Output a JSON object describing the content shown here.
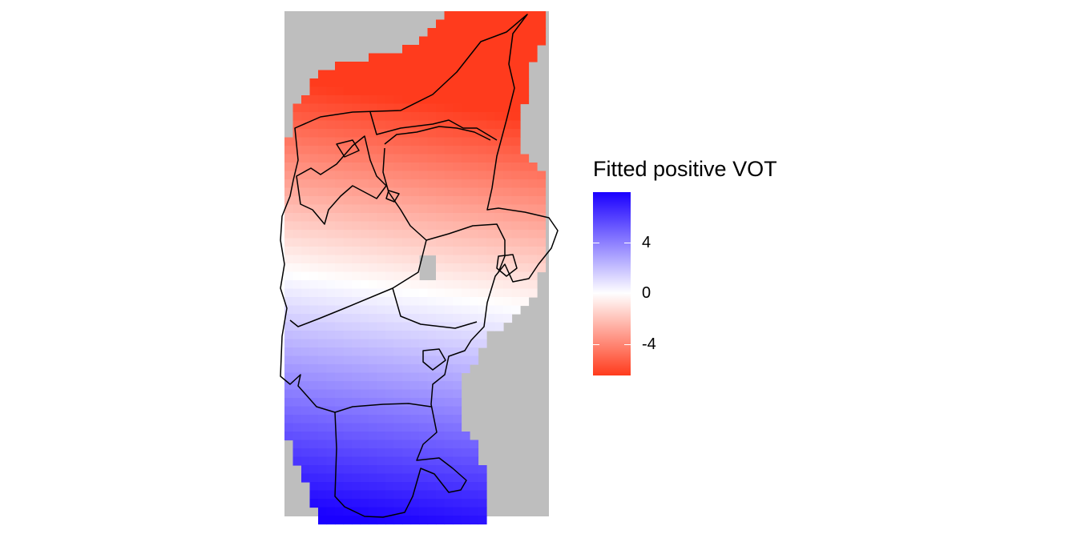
{
  "legend": {
    "title": "Fitted positive VOT",
    "range": [
      -6.5,
      8
    ],
    "ticks": [
      {
        "value": 4,
        "label": "4"
      },
      {
        "value": 0,
        "label": "0"
      },
      {
        "value": -4,
        "label": "-4"
      }
    ],
    "colors": {
      "low": "#ff3b1d",
      "mid": "#ffffff",
      "high": "#1a00ff",
      "missing": "#bebebe",
      "outline": "#000000"
    }
  }
}
